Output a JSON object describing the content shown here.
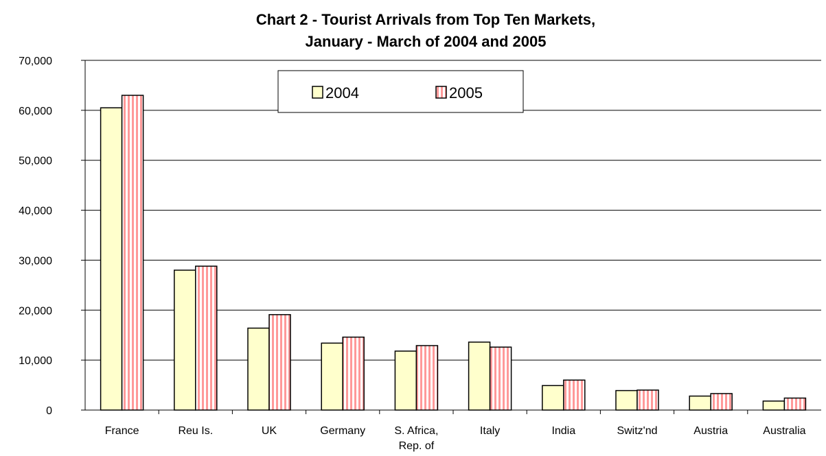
{
  "chart_data": {
    "type": "bar",
    "title": "Chart 2 - Tourist Arrivals from Top Ten Markets,",
    "subtitle": "January - March of 2004 and 2005",
    "xlabel": "",
    "ylabel": "",
    "categories": [
      "France",
      "Reu Is.",
      "UK",
      "Germany",
      "S. Africa, Rep. of",
      "Italy",
      "India",
      "Switz'nd",
      "Austria",
      "Australia"
    ],
    "category_lines": [
      [
        "France"
      ],
      [
        "Reu Is."
      ],
      [
        "UK"
      ],
      [
        "Germany"
      ],
      [
        "S. Africa,",
        "Rep. of"
      ],
      [
        "Italy"
      ],
      [
        "India"
      ],
      [
        "Switz'nd"
      ],
      [
        "Austria"
      ],
      [
        "Australia"
      ]
    ],
    "series": [
      {
        "name": "2004",
        "values": [
          60500,
          28000,
          16400,
          13400,
          11800,
          13600,
          4900,
          3900,
          2800,
          1800
        ],
        "color": "#ffffcc",
        "pattern": "solid"
      },
      {
        "name": "2005",
        "values": [
          63000,
          28800,
          19100,
          14600,
          12900,
          12600,
          6000,
          4000,
          3300,
          2400
        ],
        "color": "#ffffff",
        "stripe_color": "#ff9999",
        "pattern": "vertical-stripes"
      }
    ],
    "ylim": [
      0,
      70000
    ],
    "yticks": [
      0,
      10000,
      20000,
      30000,
      40000,
      50000,
      60000,
      70000
    ],
    "ytick_labels": [
      "0",
      "10,000",
      "20,000",
      "30,000",
      "40,000",
      "50,000",
      "60,000",
      "70,000"
    ],
    "grid": true,
    "legend_position": "top-center"
  }
}
